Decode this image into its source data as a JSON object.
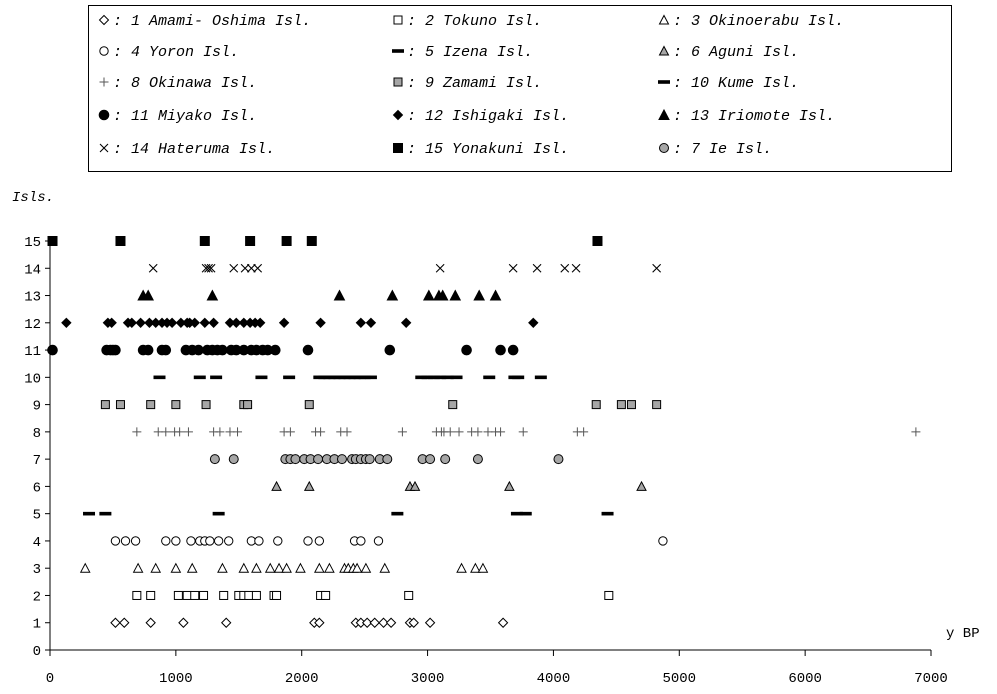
{
  "chart_data": {
    "type": "scatter",
    "title": "",
    "xlabel": "y BP",
    "ylabel": "Isls.",
    "xlim": [
      0,
      7000
    ],
    "ylim": [
      0,
      15
    ],
    "xticks": [
      "0",
      "1000",
      "2000",
      "3000",
      "4000",
      "5000",
      "6000",
      "7000"
    ],
    "yticks": [
      "0",
      "1",
      "2",
      "3",
      "4",
      "5",
      "6",
      "7",
      "8",
      "9",
      "10",
      "11",
      "12",
      "13",
      "14",
      "15"
    ],
    "grid": false,
    "legend_placement": "top",
    "legend": [
      {
        "marker": "diamond-open",
        "label": "1 Amami- Oshima Isl."
      },
      {
        "marker": "square-open",
        "label": "2 Tokuno Isl."
      },
      {
        "marker": "triangle-open",
        "label": "3 Okinoerabu Isl."
      },
      {
        "marker": "circle-open",
        "label": "4 Yoron Isl."
      },
      {
        "marker": "dash",
        "label": "5 Izena Isl."
      },
      {
        "marker": "triangle-gray",
        "label": "6 Aguni Isl."
      },
      {
        "marker": "plus",
        "label": "8 Okinawa Isl."
      },
      {
        "marker": "square-gray",
        "label": "9 Zamami Isl."
      },
      {
        "marker": "dash",
        "label": "10 Kume Isl."
      },
      {
        "marker": "circle-filled",
        "label": "11 Miyako Isl."
      },
      {
        "marker": "diamond-filled",
        "label": "12 Ishigaki Isl."
      },
      {
        "marker": "triangle-filled",
        "label": "13 Iriomote Isl."
      },
      {
        "marker": "cross",
        "label": "14 Hateruma Isl."
      },
      {
        "marker": "square-filled",
        "label": "15 Yonakuni Isl."
      },
      {
        "marker": "circle-gray",
        "label": "7 Ie Isl."
      }
    ],
    "series": [
      {
        "name": "1 Amami- Oshima Isl.",
        "island": 1,
        "marker": "diamond-open",
        "x": [
          520,
          590,
          800,
          1060,
          1400,
          2100,
          2140,
          2430,
          2470,
          2520,
          2580,
          2650,
          2710,
          2860,
          2890,
          3020,
          3600
        ]
      },
      {
        "name": "2 Tokuno Isl.",
        "island": 2,
        "marker": "square-open",
        "x": [
          690,
          800,
          1020,
          1090,
          1150,
          1220,
          1380,
          1500,
          1540,
          1580,
          1640,
          1780,
          1800,
          2150,
          2190,
          2850,
          4440
        ]
      },
      {
        "name": "3 Okinoerabu Isl.",
        "island": 3,
        "marker": "triangle-open",
        "x": [
          280,
          700,
          840,
          1000,
          1130,
          1370,
          1540,
          1640,
          1750,
          1820,
          1880,
          1990,
          2140,
          2220,
          2340,
          2370,
          2410,
          2440,
          2510,
          2660,
          3270,
          3380,
          3440
        ]
      },
      {
        "name": "4 Yoron Isl.",
        "island": 4,
        "marker": "circle-open",
        "x": [
          520,
          600,
          680,
          920,
          1000,
          1120,
          1190,
          1230,
          1270,
          1340,
          1420,
          1600,
          1660,
          1810,
          2050,
          2140,
          2420,
          2470,
          2610,
          4870
        ]
      },
      {
        "name": "5 Izena Isl.",
        "island": 5,
        "marker": "dash",
        "x": [
          310,
          440,
          1340,
          2760,
          3710,
          3780,
          4430
        ]
      },
      {
        "name": "6 Aguni Isl.",
        "island": 6,
        "marker": "triangle-gray",
        "x": [
          1800,
          2060,
          2860,
          2900,
          3650,
          4700
        ]
      },
      {
        "name": "7 Ie Isl.",
        "island": 7,
        "marker": "circle-gray",
        "x": [
          1310,
          1460,
          1870,
          1910,
          1950,
          2020,
          2070,
          2130,
          2200,
          2260,
          2320,
          2400,
          2430,
          2470,
          2510,
          2540,
          2620,
          2680,
          2960,
          3020,
          3140,
          3400,
          4040
        ]
      },
      {
        "name": "8 Okinawa Isl.",
        "island": 8,
        "marker": "plus",
        "x": [
          690,
          860,
          920,
          990,
          1030,
          1100,
          1300,
          1350,
          1430,
          1490,
          1860,
          1910,
          2110,
          2150,
          2310,
          2360,
          2800,
          3070,
          3110,
          3130,
          3180,
          3250,
          3350,
          3400,
          3480,
          3540,
          3580,
          3760,
          4190,
          4240,
          6880
        ]
      },
      {
        "name": "9 Zamami Isl.",
        "island": 9,
        "marker": "square-gray",
        "x": [
          440,
          560,
          800,
          1000,
          1240,
          1540,
          1570,
          2060,
          3200,
          4340,
          4540,
          4620,
          4820
        ]
      },
      {
        "name": "10 Kume Isl.",
        "island": 10,
        "marker": "dash",
        "x": [
          870,
          1190,
          1320,
          1680,
          1900,
          2140,
          2180,
          2220,
          2260,
          2300,
          2340,
          2380,
          2420,
          2460,
          2500,
          2550,
          2950,
          3000,
          3050,
          3100,
          3160,
          3230,
          3490,
          3690,
          3720,
          3900
        ]
      },
      {
        "name": "11 Miyako Isl.",
        "island": 11,
        "marker": "circle-filled",
        "x": [
          20,
          450,
          480,
          500,
          520,
          740,
          780,
          890,
          920,
          1080,
          1130,
          1180,
          1250,
          1290,
          1330,
          1370,
          1440,
          1480,
          1540,
          1600,
          1640,
          1690,
          1730,
          1790,
          2050,
          2700,
          3310,
          3580,
          3680
        ]
      },
      {
        "name": "12 Ishigaki Isl.",
        "island": 12,
        "marker": "diamond-filled",
        "x": [
          130,
          460,
          490,
          620,
          650,
          720,
          790,
          840,
          890,
          930,
          970,
          1040,
          1090,
          1110,
          1150,
          1230,
          1300,
          1430,
          1480,
          1540,
          1590,
          1630,
          1670,
          1860,
          2150,
          2470,
          2550,
          2830,
          3840
        ]
      },
      {
        "name": "13 Iriomote Isl.",
        "island": 13,
        "marker": "triangle-filled",
        "x": [
          740,
          780,
          1290,
          2300,
          2720,
          3010,
          3090,
          3120,
          3220,
          3410,
          3540
        ]
      },
      {
        "name": "14 Hateruma Isl.",
        "island": 14,
        "marker": "cross",
        "x": [
          820,
          1240,
          1260,
          1280,
          1460,
          1550,
          1600,
          1650,
          3100,
          3680,
          3870,
          4090,
          4180,
          4820
        ]
      },
      {
        "name": "15 Yonakuni Isl.",
        "island": 15,
        "marker": "square-filled",
        "x": [
          20,
          560,
          1230,
          1590,
          1880,
          2080,
          4350
        ]
      }
    ]
  }
}
